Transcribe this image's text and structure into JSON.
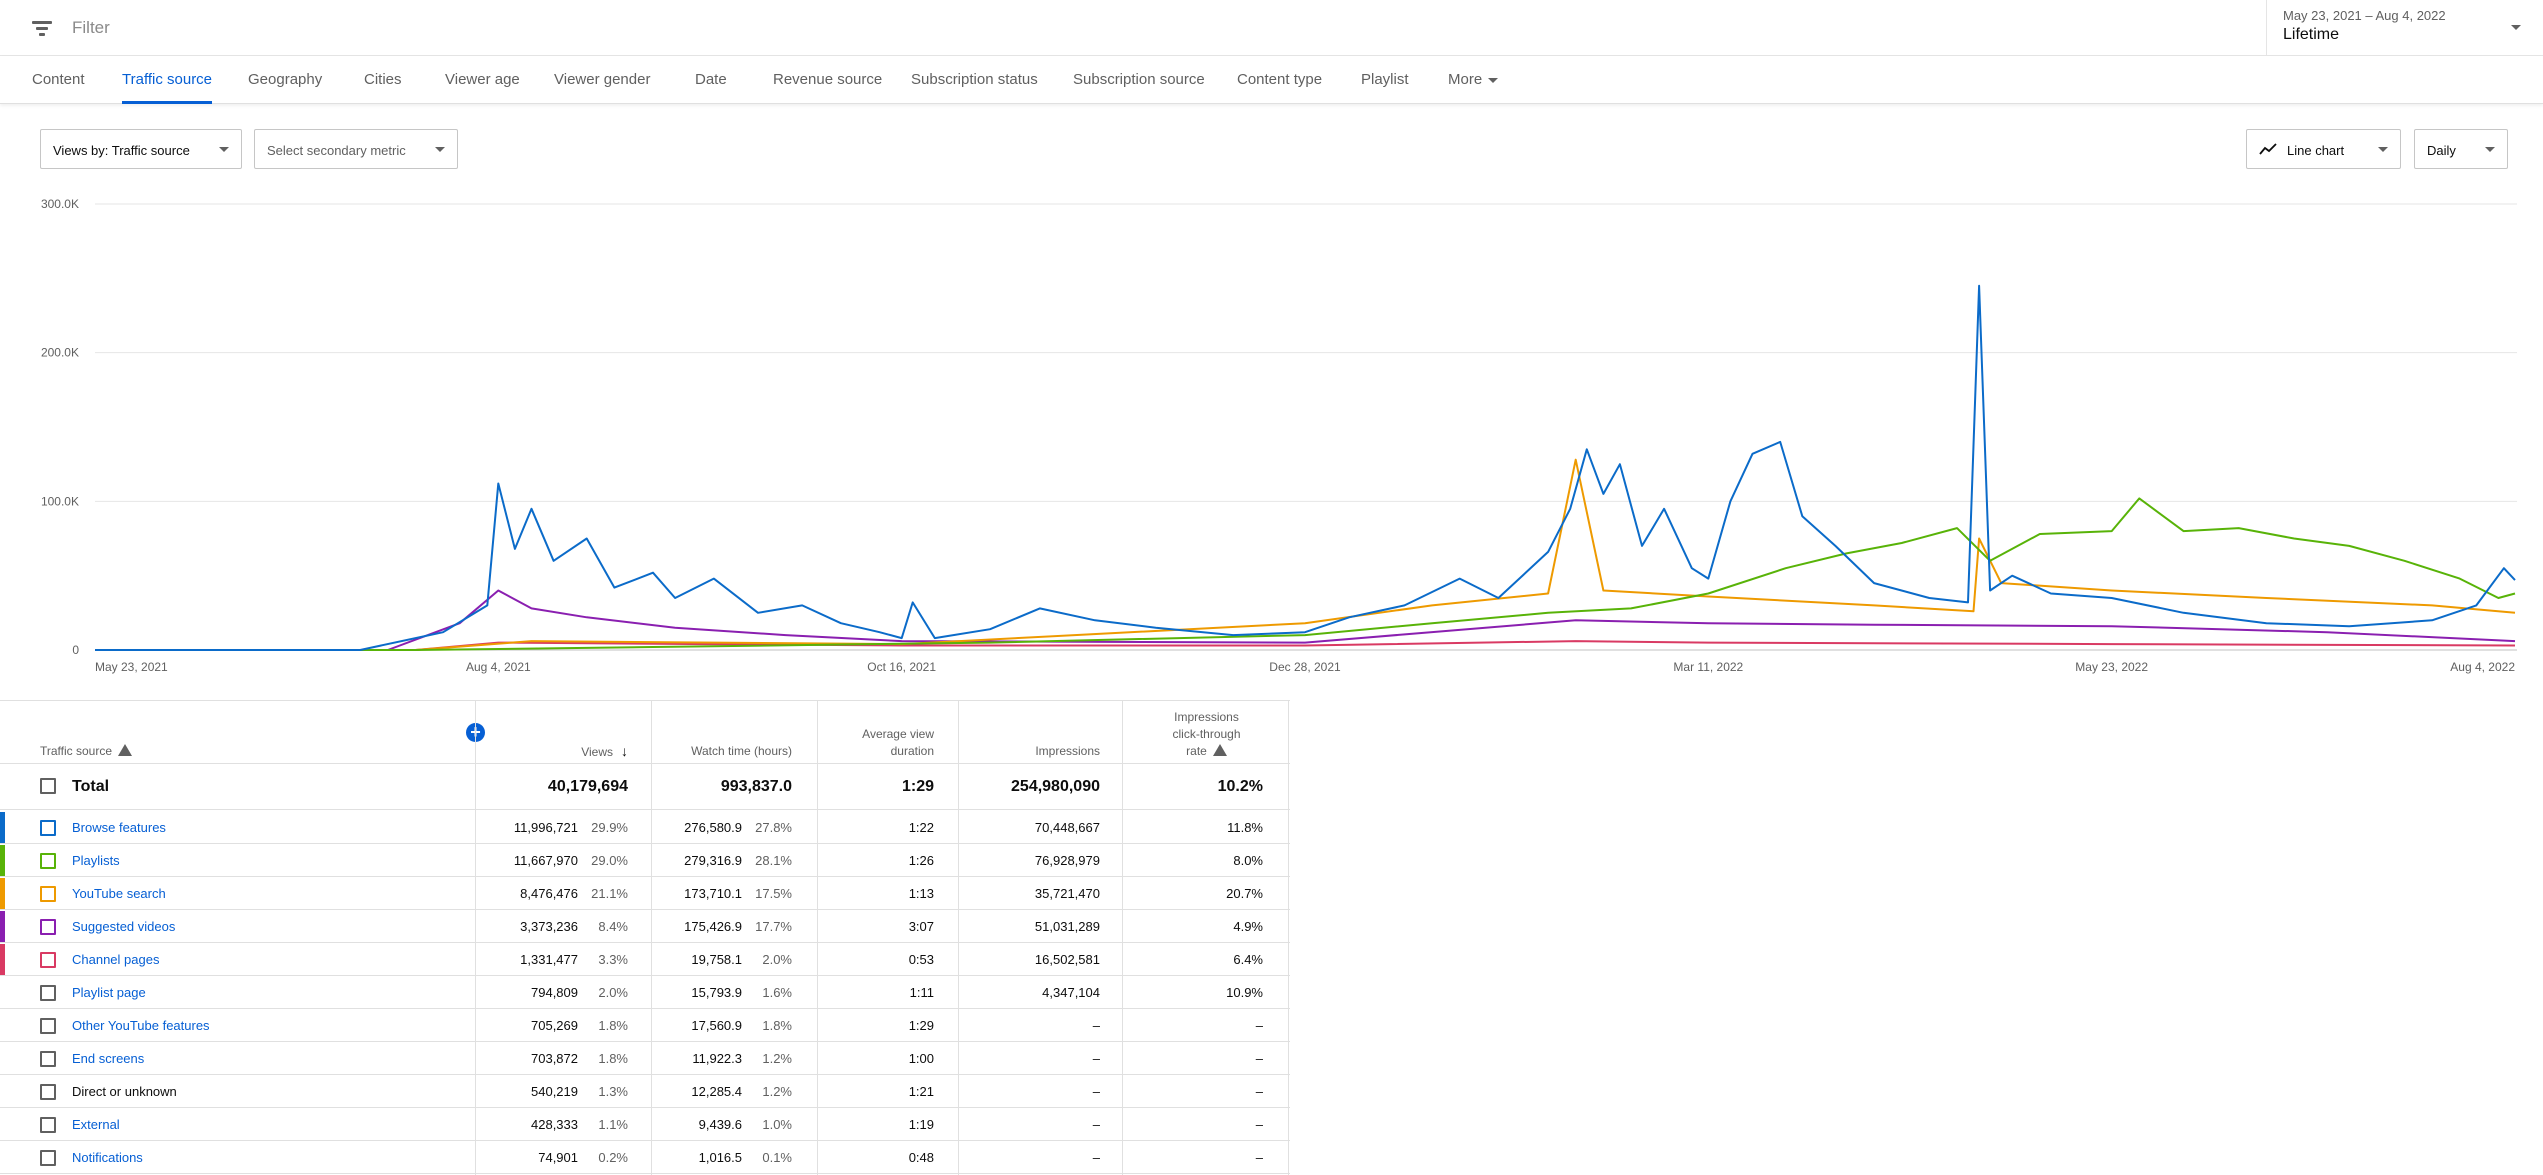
{
  "filter": {
    "label": "Filter"
  },
  "date": {
    "range": "May 23, 2021 – Aug 4, 2022",
    "value": "Lifetime"
  },
  "tabs": [
    {
      "label": "Content",
      "active": false
    },
    {
      "label": "Traffic source",
      "active": true
    },
    {
      "label": "Geography",
      "active": false
    },
    {
      "label": "Cities",
      "active": false
    },
    {
      "label": "Viewer age",
      "active": false
    },
    {
      "label": "Viewer gender",
      "active": false
    },
    {
      "label": "Date",
      "active": false
    },
    {
      "label": "Revenue source",
      "active": false
    },
    {
      "label": "Subscription status",
      "active": false
    },
    {
      "label": "Subscription source",
      "active": false
    },
    {
      "label": "Content type",
      "active": false
    },
    {
      "label": "Playlist",
      "active": false
    }
  ],
  "tab_more": "More",
  "controls": {
    "primary_metric": "Views by: Traffic source",
    "secondary_metric": "Select secondary metric",
    "chart_type": "Line chart",
    "granularity": "Daily"
  },
  "colors": {
    "browse": "#0b6bc9",
    "playlists": "#58b308",
    "search": "#ee9a00",
    "suggested": "#8a1fb0",
    "channel": "#d93a63",
    "grid": "#e6e6e6",
    "accent": "#065fd4"
  },
  "chart_data": {
    "type": "line",
    "y_ticks": [
      "300.0K",
      "200.0K",
      "100.0K",
      "0"
    ],
    "x_ticks": [
      "May 23, 2021",
      "Aug 4, 2021",
      "Oct 16, 2021",
      "Dec 28, 2021",
      "Mar 11, 2022",
      "May 23, 2022",
      "Aug 4, 2022"
    ],
    "xlim": [
      "2021-05-23",
      "2022-08-04"
    ],
    "ylim": [
      0,
      300000
    ],
    "grid": true,
    "series": [
      {
        "name": "Browse features",
        "color_key": "browse",
        "points": [
          [
            "2021-05-23",
            0
          ],
          [
            "2021-07-10",
            0
          ],
          [
            "2021-07-25",
            12000
          ],
          [
            "2021-08-02",
            30000
          ],
          [
            "2021-08-04",
            112000
          ],
          [
            "2021-08-07",
            68000
          ],
          [
            "2021-08-10",
            95000
          ],
          [
            "2021-08-14",
            60000
          ],
          [
            "2021-08-20",
            75000
          ],
          [
            "2021-08-25",
            42000
          ],
          [
            "2021-09-01",
            52000
          ],
          [
            "2021-09-05",
            35000
          ],
          [
            "2021-09-12",
            48000
          ],
          [
            "2021-09-20",
            25000
          ],
          [
            "2021-09-28",
            30000
          ],
          [
            "2021-10-05",
            18000
          ],
          [
            "2021-10-12",
            12000
          ],
          [
            "2021-10-16",
            8000
          ],
          [
            "2021-10-18",
            32000
          ],
          [
            "2021-10-22",
            8000
          ],
          [
            "2021-11-01",
            14000
          ],
          [
            "2021-11-10",
            28000
          ],
          [
            "2021-11-20",
            20000
          ],
          [
            "2021-12-01",
            15000
          ],
          [
            "2021-12-15",
            10000
          ],
          [
            "2021-12-28",
            12000
          ],
          [
            "2022-01-05",
            22000
          ],
          [
            "2022-01-15",
            30000
          ],
          [
            "2022-01-25",
            48000
          ],
          [
            "2022-02-01",
            35000
          ],
          [
            "2022-02-10",
            66000
          ],
          [
            "2022-02-14",
            95000
          ],
          [
            "2022-02-17",
            135000
          ],
          [
            "2022-02-20",
            105000
          ],
          [
            "2022-02-23",
            125000
          ],
          [
            "2022-02-27",
            70000
          ],
          [
            "2022-03-03",
            95000
          ],
          [
            "2022-03-08",
            55000
          ],
          [
            "2022-03-11",
            48000
          ],
          [
            "2022-03-15",
            100000
          ],
          [
            "2022-03-19",
            132000
          ],
          [
            "2022-03-24",
            140000
          ],
          [
            "2022-03-28",
            90000
          ],
          [
            "2022-04-03",
            70000
          ],
          [
            "2022-04-10",
            45000
          ],
          [
            "2022-04-20",
            35000
          ],
          [
            "2022-04-27",
            32000
          ],
          [
            "2022-04-29",
            245000
          ],
          [
            "2022-05-01",
            40000
          ],
          [
            "2022-05-05",
            50000
          ],
          [
            "2022-05-12",
            38000
          ],
          [
            "2022-05-23",
            35000
          ],
          [
            "2022-06-05",
            25000
          ],
          [
            "2022-06-20",
            18000
          ],
          [
            "2022-07-05",
            16000
          ],
          [
            "2022-07-20",
            20000
          ],
          [
            "2022-07-28",
            30000
          ],
          [
            "2022-08-02",
            55000
          ],
          [
            "2022-08-04",
            47000
          ]
        ]
      },
      {
        "name": "Playlists",
        "color_key": "playlists",
        "points": [
          [
            "2021-05-23",
            0
          ],
          [
            "2021-07-20",
            0
          ],
          [
            "2021-09-01",
            2000
          ],
          [
            "2021-11-01",
            5000
          ],
          [
            "2021-12-28",
            10000
          ],
          [
            "2022-01-20",
            18000
          ],
          [
            "2022-02-10",
            25000
          ],
          [
            "2022-02-25",
            28000
          ],
          [
            "2022-03-11",
            38000
          ],
          [
            "2022-03-25",
            55000
          ],
          [
            "2022-04-05",
            65000
          ],
          [
            "2022-04-15",
            72000
          ],
          [
            "2022-04-25",
            82000
          ],
          [
            "2022-05-01",
            60000
          ],
          [
            "2022-05-10",
            78000
          ],
          [
            "2022-05-23",
            80000
          ],
          [
            "2022-05-28",
            102000
          ],
          [
            "2022-06-05",
            80000
          ],
          [
            "2022-06-15",
            82000
          ],
          [
            "2022-06-25",
            75000
          ],
          [
            "2022-07-05",
            70000
          ],
          [
            "2022-07-15",
            60000
          ],
          [
            "2022-07-25",
            48000
          ],
          [
            "2022-08-01",
            35000
          ],
          [
            "2022-08-04",
            38000
          ]
        ]
      },
      {
        "name": "YouTube search",
        "color_key": "search",
        "points": [
          [
            "2021-05-23",
            0
          ],
          [
            "2021-07-20",
            0
          ],
          [
            "2021-08-10",
            6000
          ],
          [
            "2021-10-16",
            4000
          ],
          [
            "2021-12-28",
            18000
          ],
          [
            "2022-01-20",
            30000
          ],
          [
            "2022-02-10",
            38000
          ],
          [
            "2022-02-15",
            128000
          ],
          [
            "2022-02-20",
            40000
          ],
          [
            "2022-03-11",
            36000
          ],
          [
            "2022-04-10",
            30000
          ],
          [
            "2022-04-28",
            26000
          ],
          [
            "2022-04-29",
            75000
          ],
          [
            "2022-05-03",
            45000
          ],
          [
            "2022-05-23",
            40000
          ],
          [
            "2022-06-20",
            35000
          ],
          [
            "2022-07-20",
            30000
          ],
          [
            "2022-08-04",
            25000
          ]
        ]
      },
      {
        "name": "Suggested videos",
        "color_key": "suggested",
        "points": [
          [
            "2021-05-23",
            0
          ],
          [
            "2021-07-15",
            0
          ],
          [
            "2021-07-28",
            18000
          ],
          [
            "2021-08-04",
            40000
          ],
          [
            "2021-08-10",
            28000
          ],
          [
            "2021-08-20",
            22000
          ],
          [
            "2021-09-05",
            15000
          ],
          [
            "2021-09-25",
            10000
          ],
          [
            "2021-10-16",
            6000
          ],
          [
            "2021-12-28",
            5000
          ],
          [
            "2022-02-15",
            20000
          ],
          [
            "2022-03-11",
            18000
          ],
          [
            "2022-04-10",
            17000
          ],
          [
            "2022-05-23",
            16000
          ],
          [
            "2022-07-01",
            12000
          ],
          [
            "2022-08-04",
            6000
          ]
        ]
      },
      {
        "name": "Channel pages",
        "color_key": "channel",
        "points": [
          [
            "2021-05-23",
            0
          ],
          [
            "2021-07-20",
            0
          ],
          [
            "2021-08-04",
            5000
          ],
          [
            "2021-10-16",
            3000
          ],
          [
            "2021-12-28",
            3000
          ],
          [
            "2022-02-15",
            6000
          ],
          [
            "2022-03-11",
            5000
          ],
          [
            "2022-05-23",
            4000
          ],
          [
            "2022-08-04",
            3000
          ]
        ]
      }
    ]
  },
  "table": {
    "headers": {
      "source": "Traffic source",
      "views": "Views",
      "watch_time": "Watch time (hours)",
      "avd_l1": "Average view",
      "avd_l2": "duration",
      "impressions": "Impressions",
      "ctr_l1": "Impressions",
      "ctr_l2": "click-through",
      "ctr_l3": "rate"
    },
    "total": {
      "name": "Total",
      "views": "40,179,694",
      "watch_time": "993,837.0",
      "avd": "1:29",
      "impressions": "254,980,090",
      "ctr": "10.2%"
    },
    "rows": [
      {
        "name": "Browse features",
        "views": "11,996,721",
        "views_pct": "29.9%",
        "watch": "276,580.9",
        "watch_pct": "27.8%",
        "avd": "1:22",
        "impressions": "70,448,667",
        "ctr": "11.8%",
        "color_key": "browse",
        "link": true
      },
      {
        "name": "Playlists",
        "views": "11,667,970",
        "views_pct": "29.0%",
        "watch": "279,316.9",
        "watch_pct": "28.1%",
        "avd": "1:26",
        "impressions": "76,928,979",
        "ctr": "8.0%",
        "color_key": "playlists",
        "link": true
      },
      {
        "name": "YouTube search",
        "views": "8,476,476",
        "views_pct": "21.1%",
        "watch": "173,710.1",
        "watch_pct": "17.5%",
        "avd": "1:13",
        "impressions": "35,721,470",
        "ctr": "20.7%",
        "color_key": "search",
        "link": true
      },
      {
        "name": "Suggested videos",
        "views": "3,373,236",
        "views_pct": "8.4%",
        "watch": "175,426.9",
        "watch_pct": "17.7%",
        "avd": "3:07",
        "impressions": "51,031,289",
        "ctr": "4.9%",
        "color_key": "suggested",
        "link": true
      },
      {
        "name": "Channel pages",
        "views": "1,331,477",
        "views_pct": "3.3%",
        "watch": "19,758.1",
        "watch_pct": "2.0%",
        "avd": "0:53",
        "impressions": "16,502,581",
        "ctr": "6.4%",
        "color_key": "channel",
        "link": true
      },
      {
        "name": "Playlist page",
        "views": "794,809",
        "views_pct": "2.0%",
        "watch": "15,793.9",
        "watch_pct": "1.6%",
        "avd": "1:11",
        "impressions": "4,347,104",
        "ctr": "10.9%",
        "color_key": "",
        "link": true
      },
      {
        "name": "Other YouTube features",
        "views": "705,269",
        "views_pct": "1.8%",
        "watch": "17,560.9",
        "watch_pct": "1.8%",
        "avd": "1:29",
        "impressions": "–",
        "ctr": "–",
        "color_key": "",
        "link": true
      },
      {
        "name": "End screens",
        "views": "703,872",
        "views_pct": "1.8%",
        "watch": "11,922.3",
        "watch_pct": "1.2%",
        "avd": "1:00",
        "impressions": "–",
        "ctr": "–",
        "color_key": "",
        "link": true
      },
      {
        "name": "Direct or unknown",
        "views": "540,219",
        "views_pct": "1.3%",
        "watch": "12,285.4",
        "watch_pct": "1.2%",
        "avd": "1:21",
        "impressions": "–",
        "ctr": "–",
        "color_key": "",
        "link": false
      },
      {
        "name": "External",
        "views": "428,333",
        "views_pct": "1.1%",
        "watch": "9,439.6",
        "watch_pct": "1.0%",
        "avd": "1:19",
        "impressions": "–",
        "ctr": "–",
        "color_key": "",
        "link": true
      },
      {
        "name": "Notifications",
        "views": "74,901",
        "views_pct": "0.2%",
        "watch": "1,016.5",
        "watch_pct": "0.1%",
        "avd": "0:48",
        "impressions": "–",
        "ctr": "–",
        "color_key": "",
        "link": true
      }
    ]
  }
}
